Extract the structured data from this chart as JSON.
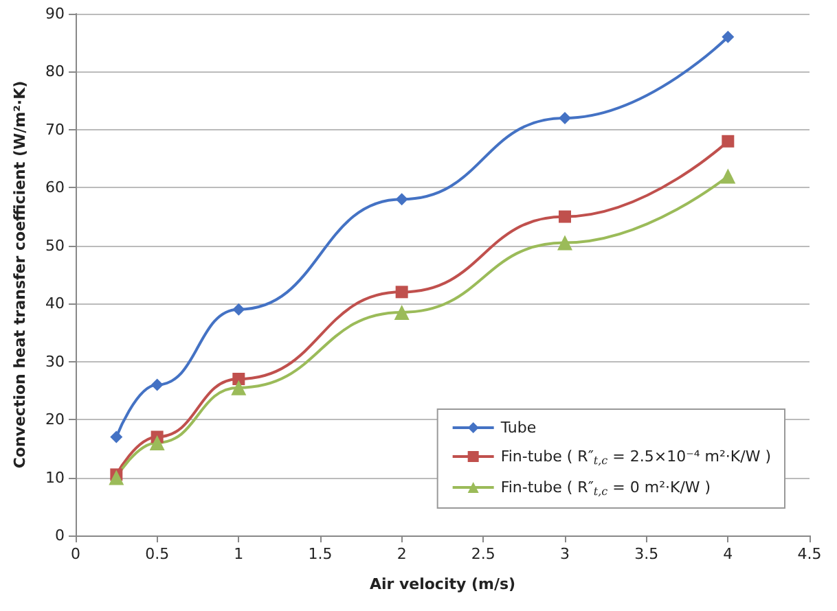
{
  "chart_data": {
    "type": "line",
    "xlabel": "Air velocity (m/s)",
    "ylabel": "Convection heat transfer coefficient (W/m²·K)",
    "x": [
      0.25,
      0.5,
      1,
      2,
      3,
      4
    ],
    "series": [
      {
        "name": "Tube",
        "color": "#4472c4",
        "marker": "diamond",
        "values": [
          17,
          26,
          39,
          58,
          72,
          86
        ]
      },
      {
        "name": "Fin-tube ( R″$_{t,c}$ = 2.5×10⁻⁴ m²·K/W )",
        "color": "#c0504d",
        "marker": "square",
        "values": [
          10.5,
          17,
          27,
          42,
          55,
          68
        ]
      },
      {
        "name": "Fin-tube ( R″$_{t,c}$ = 0 m²·K/W )",
        "color": "#9bbb59",
        "marker": "triangle",
        "values": [
          10,
          16,
          25.5,
          38.5,
          50.5,
          62
        ]
      }
    ],
    "xlim": [
      0,
      4.5
    ],
    "xticks": [
      0,
      0.5,
      1,
      1.5,
      2,
      2.5,
      3,
      3.5,
      4,
      4.5
    ],
    "ylim": [
      0,
      90
    ],
    "yticks": [
      0,
      10,
      20,
      30,
      40,
      50,
      60,
      70,
      80,
      90
    ],
    "grid": "y",
    "legend": "bottom right",
    "line_style": "solid"
  }
}
